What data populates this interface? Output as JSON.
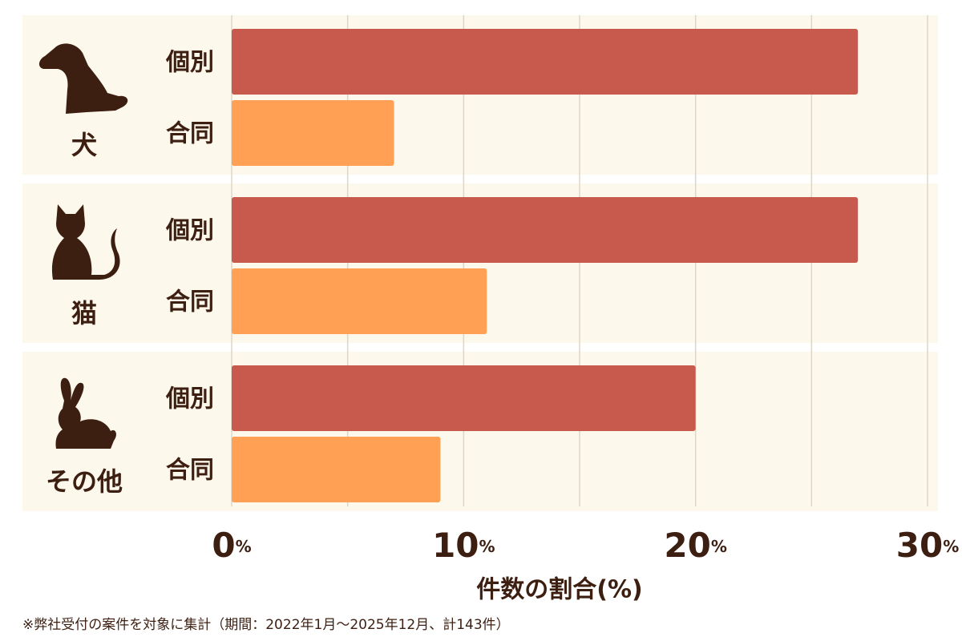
{
  "chart_data": {
    "type": "bar",
    "orientation": "horizontal",
    "categories": [
      "犬",
      "猫",
      "その他"
    ],
    "series": [
      {
        "name": "個別",
        "color": "#c85a4d",
        "values": [
          27,
          27,
          20
        ]
      },
      {
        "name": "合同",
        "color": "#ffa055",
        "values": [
          7,
          11,
          9
        ]
      }
    ],
    "xlim": [
      0,
      30
    ],
    "xticks": [
      0,
      10,
      20,
      30
    ],
    "x_unit": "%",
    "grid_xticks": [
      0,
      5,
      10,
      15,
      20,
      25,
      30
    ],
    "grid": true,
    "x_label": "件数の割合(%)",
    "footnote": "※弊社受付の案件を対象に集計（期間：2022年1月～2025年12月、計143件）"
  }
}
